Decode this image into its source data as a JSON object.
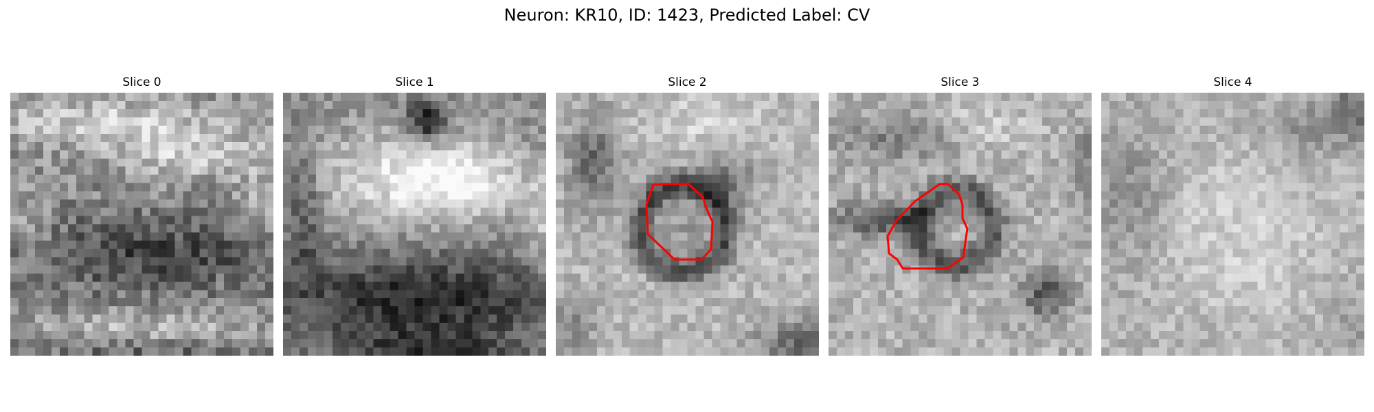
{
  "figure": {
    "title": "Neuron: KR10, ID: 1423, Predicted Label: CV"
  },
  "slices": [
    {
      "title": "Slice 0",
      "has_contour": false
    },
    {
      "title": "Slice 1",
      "has_contour": false
    },
    {
      "title": "Slice 2",
      "has_contour": true
    },
    {
      "title": "Slice 3",
      "has_contour": true
    },
    {
      "title": "Slice 4",
      "has_contour": false
    }
  ],
  "colors": {
    "contour": "#ff0000",
    "background": "#ffffff"
  }
}
